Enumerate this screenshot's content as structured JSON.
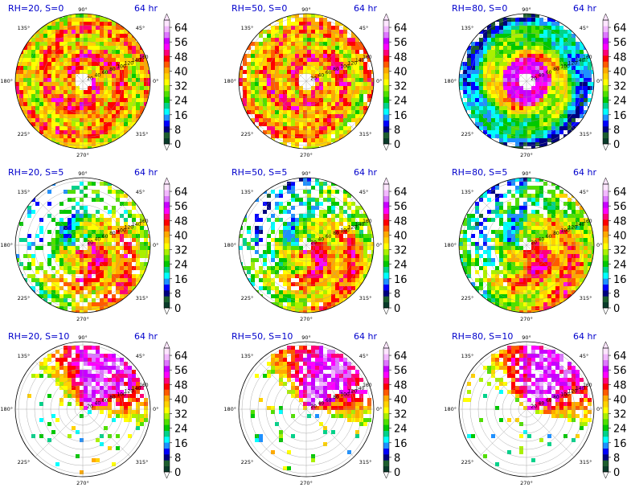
{
  "chart_data": {
    "type": "heatmap",
    "projection": "polar",
    "colorbar_ticks": [
      0,
      8,
      16,
      24,
      32,
      40,
      48,
      56,
      64
    ],
    "colorbar_colors": [
      "#0a3b2a",
      "#1d5e2f",
      "#000080",
      "#0000ff",
      "#1e90ff",
      "#00ffff",
      "#00d28a",
      "#00c800",
      "#50e000",
      "#aaf000",
      "#ffff00",
      "#ffd200",
      "#ffaa00",
      "#ff5a00",
      "#ff0000",
      "#ff0078",
      "#ff00ff",
      "#c800ff",
      "#dd77ff",
      "#f2b8ff",
      "#fde5ff"
    ],
    "angle_labels": [
      "0°",
      "45°",
      "90°",
      "135°",
      "180°",
      "225°",
      "270°",
      "315°"
    ],
    "radial_labels": [
      "20",
      "40",
      "60",
      "80",
      "100",
      "120",
      "140",
      "160"
    ],
    "panels": [
      {
        "title": "RH=20, S=0",
        "time": "64 hr",
        "rh": 20,
        "shear": 0
      },
      {
        "title": "RH=50, S=0",
        "time": "64 hr",
        "rh": 50,
        "shear": 0
      },
      {
        "title": "RH=80, S=0",
        "time": "64 hr",
        "rh": 80,
        "shear": 0
      },
      {
        "title": "RH=20, S=5",
        "time": "64 hr",
        "rh": 20,
        "shear": 5
      },
      {
        "title": "RH=50, S=5",
        "time": "64 hr",
        "rh": 50,
        "shear": 5
      },
      {
        "title": "RH=80, S=5",
        "time": "64 hr",
        "rh": 80,
        "shear": 5
      },
      {
        "title": "RH=20, S=10",
        "time": "64 hr",
        "rh": 20,
        "shear": 10
      },
      {
        "title": "RH=50, S=10",
        "time": "64 hr",
        "rh": 50,
        "shear": 10
      },
      {
        "title": "RH=80, S=10",
        "time": "64 hr",
        "rh": 80,
        "shear": 10
      }
    ]
  },
  "style": {
    "title_color": "#0000cc",
    "grid_color": "#999999"
  }
}
